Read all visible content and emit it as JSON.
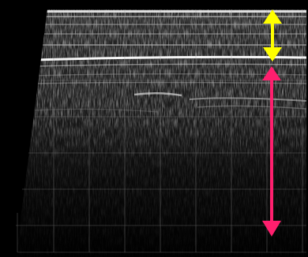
{
  "image": {
    "kind": "ultrasound-scan",
    "background_color": "#000000",
    "grid_color": "#9a9a9a"
  },
  "measurements": [
    {
      "name": "upper-thickness-marker",
      "color": "#ffff00",
      "icon": "double-arrow-vertical-icon"
    },
    {
      "name": "lower-depth-marker",
      "color": "#ff1f6e",
      "icon": "double-arrow-vertical-icon"
    }
  ]
}
